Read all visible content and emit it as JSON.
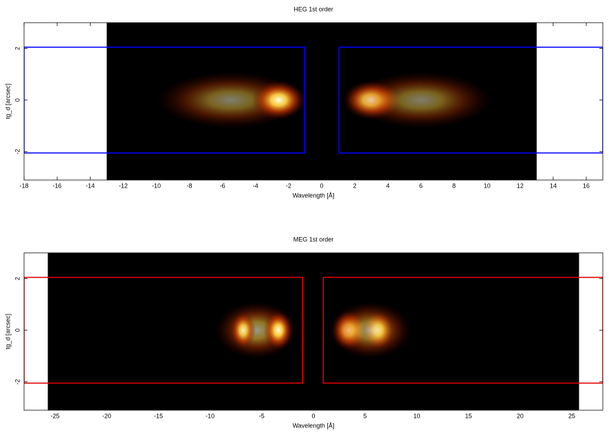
{
  "chart_data": [
    {
      "type": "heatmap",
      "title": "HEG 1st order",
      "xlabel": "Wavelength [Å]",
      "ylabel": "tg_d [arcsec]",
      "xlim": [
        -18,
        17
      ],
      "ylim": [
        -3.1,
        3
      ],
      "xticks": [
        -18,
        -16,
        -14,
        -12,
        -10,
        -8,
        -6,
        -4,
        -2,
        0,
        2,
        4,
        6,
        8,
        10,
        12,
        14,
        16
      ],
      "yticks": [
        -2,
        0,
        2
      ],
      "detector_extent": [
        -13,
        13
      ],
      "hotspots": [
        {
          "x": -5.5,
          "y": 0,
          "rx": 4.5,
          "ry": 1.1,
          "intensity": 0.5
        },
        {
          "x": -2.6,
          "y": 0,
          "rx": 1.6,
          "ry": 0.75,
          "intensity": 1
        },
        {
          "x": 3,
          "y": 0,
          "rx": 1.7,
          "ry": 0.75,
          "intensity": 1
        },
        {
          "x": 6,
          "y": 0,
          "rx": 4.3,
          "ry": 1.1,
          "intensity": 0.5
        }
      ],
      "regions": [
        {
          "x": [
            -18,
            -1.05
          ],
          "y": [
            -2.05,
            2.05
          ]
        },
        {
          "x": [
            1.05,
            17
          ],
          "y": [
            -2.05,
            2.05
          ]
        }
      ],
      "region_color": "#0000ff"
    },
    {
      "type": "heatmap",
      "title": "MEG 1st order",
      "xlabel": "Wavelength [Å]",
      "ylabel": "tg_d [arcsec]",
      "xlim": [
        -28,
        28
      ],
      "ylim": [
        -3.1,
        3
      ],
      "xticks": [
        -25,
        -20,
        -15,
        -10,
        -5,
        0,
        5,
        10,
        15,
        20,
        25
      ],
      "yticks": [
        -2,
        0,
        2
      ],
      "detector_extent": [
        -25.7,
        25.7
      ],
      "hotspots": [
        {
          "x": -5.5,
          "y": 0,
          "rx": 4,
          "ry": 1.1,
          "intensity": 0.6
        },
        {
          "x": -6.8,
          "y": 0,
          "rx": 1.2,
          "ry": 0.7,
          "intensity": 0.9
        },
        {
          "x": -3.4,
          "y": 0,
          "rx": 1.4,
          "ry": 0.75,
          "intensity": 1
        },
        {
          "x": 3.4,
          "y": 0,
          "rx": 1.6,
          "ry": 0.75,
          "intensity": 1
        },
        {
          "x": 6.3,
          "y": 0,
          "rx": 1.4,
          "ry": 0.7,
          "intensity": 0.9
        },
        {
          "x": 5.5,
          "y": 0,
          "rx": 4,
          "ry": 1.1,
          "intensity": 0.6
        }
      ],
      "regions": [
        {
          "x": [
            -28,
            -1.05
          ],
          "y": [
            -2.05,
            2.05
          ]
        },
        {
          "x": [
            0.95,
            28
          ],
          "y": [
            -2.05,
            2.05
          ]
        }
      ],
      "region_color": "#e00000"
    }
  ]
}
